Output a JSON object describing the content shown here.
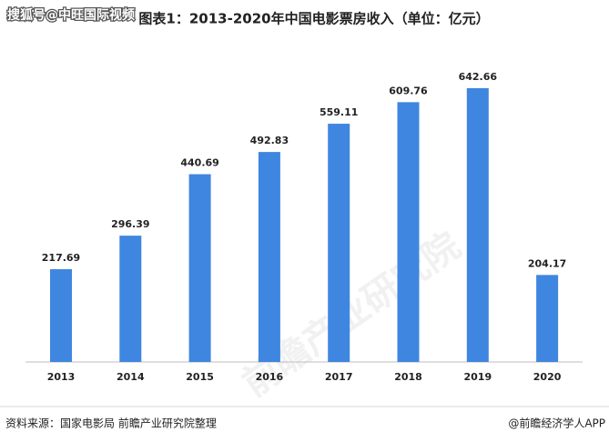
{
  "chart_data": {
    "type": "bar",
    "title": "图表1：2013-2020年中国电影票房收入（单位：亿元）",
    "categories": [
      "2013",
      "2014",
      "2015",
      "2016",
      "2017",
      "2018",
      "2019",
      "2020"
    ],
    "values": [
      217.69,
      296.39,
      440.69,
      492.83,
      559.11,
      609.76,
      642.66,
      204.17
    ],
    "color": "#3f86e0",
    "source": "资料来源：国家电影局 前瞻产业研究院整理",
    "credit": "@前瞻经济学人APP",
    "watermark": "搜狐号@中旺国际视频",
    "brand_watermark": "前瞻产业研究院"
  }
}
